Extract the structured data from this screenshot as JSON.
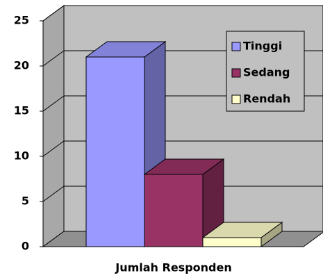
{
  "chart_data": {
    "type": "bar3d",
    "categories": [
      "Jumlah Responden"
    ],
    "series": [
      {
        "name": "Tinggi",
        "color": "#9999ff",
        "values": [
          21
        ]
      },
      {
        "name": "Sedang",
        "color": "#993366",
        "values": [
          8
        ]
      },
      {
        "name": "Rendah",
        "color": "#ffffcc",
        "values": [
          1
        ]
      }
    ],
    "ylim": [
      0,
      25
    ],
    "yticks": [
      0,
      5,
      10,
      15,
      20,
      25
    ],
    "grid": true,
    "legend": "upper right"
  }
}
